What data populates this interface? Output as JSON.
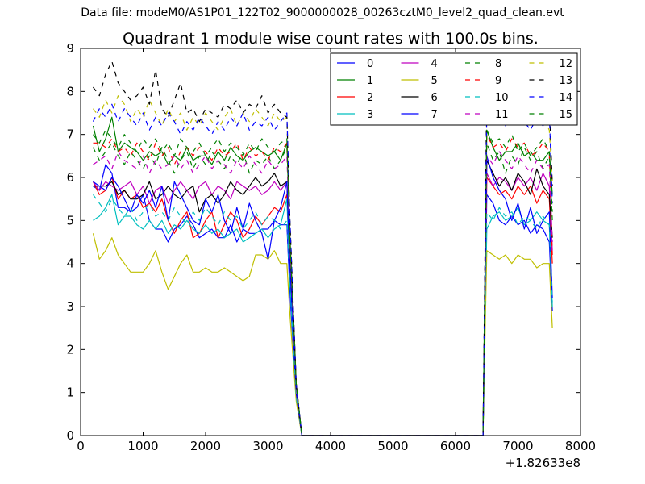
{
  "figure": {
    "suptitle": "Data file: modeM0/AS1P01_122T02_9000000028_00263cztM0_level2_quad_clean.evt"
  },
  "chart_data": {
    "type": "line",
    "title": "Quadrant 1 module wise count rates with 100.0s bins.",
    "xlabel": "",
    "ylabel": "",
    "x_offset_label": "+1.82633e8",
    "xlim": [
      0,
      8000
    ],
    "ylim": [
      0,
      9
    ],
    "xticks": [
      "0",
      "1000",
      "2000",
      "3000",
      "4000",
      "5000",
      "6000",
      "7000",
      "8000"
    ],
    "yticks": [
      "0",
      "1",
      "2",
      "3",
      "4",
      "5",
      "6",
      "7",
      "8",
      "9"
    ],
    "grid": false,
    "legend": {
      "placement": "top-right",
      "columns": 4
    },
    "x": [
      200,
      300,
      400,
      500,
      600,
      700,
      800,
      900,
      1000,
      1100,
      1200,
      1300,
      1400,
      1500,
      1600,
      1700,
      1800,
      1900,
      2000,
      2100,
      2200,
      2300,
      2400,
      2500,
      2600,
      2700,
      2800,
      2900,
      3000,
      3100,
      3200,
      3300,
      3350,
      3450,
      3540,
      6440,
      6500,
      6600,
      6700,
      6800,
      6900,
      7000,
      7100,
      7200,
      7300,
      7400,
      7500,
      7550
    ],
    "series": [
      {
        "name": "0",
        "color": "#0000ff",
        "dash": "solid",
        "values": [
          5.8,
          5.7,
          6.3,
          6.1,
          5.3,
          5.3,
          5.2,
          5.3,
          5.6,
          5.0,
          4.8,
          4.8,
          4.5,
          4.8,
          4.9,
          5.1,
          4.9,
          4.6,
          4.7,
          4.8,
          4.6,
          4.6,
          4.9,
          4.5,
          4.8,
          4.7,
          4.7,
          4.8,
          4.8,
          5.0,
          4.9,
          4.9,
          3.3,
          0.9,
          0.0,
          0.0,
          5.6,
          5.4,
          5.0,
          4.9,
          5.1,
          4.9,
          5.0,
          4.7,
          4.9,
          4.8,
          4.5,
          2.9
        ]
      },
      {
        "name": "1",
        "color": "#008000",
        "dash": "solid",
        "values": [
          7.2,
          6.6,
          6.9,
          7.4,
          6.6,
          6.8,
          6.7,
          6.6,
          6.4,
          6.6,
          6.5,
          6.6,
          6.3,
          6.5,
          6.4,
          6.7,
          6.4,
          6.5,
          6.5,
          6.3,
          6.6,
          6.4,
          6.7,
          6.5,
          6.4,
          6.6,
          6.7,
          6.6,
          6.5,
          6.6,
          6.4,
          6.8,
          4.5,
          1.2,
          0.0,
          0.0,
          7.1,
          6.7,
          6.4,
          6.6,
          6.6,
          6.8,
          6.5,
          6.6,
          6.4,
          6.4,
          6.6,
          5.6
        ]
      },
      {
        "name": "2",
        "color": "#ff0000",
        "dash": "solid",
        "values": [
          5.9,
          5.6,
          5.7,
          6.0,
          5.5,
          5.7,
          5.5,
          5.6,
          5.3,
          5.4,
          5.2,
          5.5,
          5.0,
          4.7,
          5.0,
          5.2,
          4.6,
          4.7,
          5.0,
          5.2,
          4.6,
          4.9,
          5.2,
          5.0,
          4.6,
          4.8,
          5.1,
          4.9,
          5.1,
          5.3,
          5.2,
          5.6,
          3.8,
          1.0,
          0.0,
          0.0,
          6.0,
          5.8,
          5.6,
          5.7,
          5.5,
          5.8,
          5.6,
          5.8,
          5.4,
          5.7,
          5.5,
          4.0
        ]
      },
      {
        "name": "3",
        "color": "#00bfbf",
        "dash": "solid",
        "values": [
          5.0,
          5.1,
          5.3,
          5.6,
          4.9,
          5.1,
          5.1,
          4.9,
          4.8,
          5.0,
          4.8,
          5.0,
          4.7,
          4.9,
          4.8,
          5.0,
          4.8,
          4.7,
          4.9,
          4.7,
          4.8,
          4.6,
          4.7,
          4.8,
          4.5,
          4.6,
          4.7,
          4.8,
          4.6,
          4.8,
          4.9,
          5.5,
          3.6,
          0.9,
          0.0,
          0.0,
          4.8,
          5.1,
          5.2,
          5.0,
          5.1,
          5.3,
          4.9,
          5.0,
          5.2,
          5.0,
          4.9,
          3.0
        ]
      },
      {
        "name": "4",
        "color": "#bf00bf",
        "dash": "solid",
        "values": [
          5.9,
          5.7,
          5.9,
          5.8,
          5.7,
          5.8,
          5.9,
          5.6,
          5.8,
          5.4,
          5.7,
          5.8,
          5.4,
          5.7,
          5.9,
          5.7,
          5.5,
          5.8,
          5.9,
          5.6,
          5.8,
          5.7,
          5.5,
          5.9,
          5.8,
          5.7,
          5.8,
          5.6,
          5.7,
          5.9,
          5.7,
          5.9,
          3.9,
          1.0,
          0.0,
          0.0,
          6.1,
          5.8,
          6.0,
          5.9,
          5.7,
          6.0,
          5.8,
          6.0,
          5.7,
          6.1,
          5.8,
          4.3
        ]
      },
      {
        "name": "5",
        "color": "#bfbf00",
        "dash": "solid",
        "values": [
          4.7,
          4.1,
          4.3,
          4.6,
          4.2,
          4.0,
          3.8,
          3.8,
          3.8,
          4.0,
          4.3,
          3.8,
          3.4,
          3.7,
          4.0,
          4.2,
          3.8,
          3.8,
          3.9,
          3.8,
          3.8,
          3.9,
          3.8,
          3.7,
          3.6,
          3.7,
          4.2,
          4.2,
          4.1,
          4.3,
          4.0,
          4.0,
          2.8,
          0.8,
          0.0,
          0.0,
          4.3,
          4.2,
          4.1,
          4.2,
          4.0,
          4.2,
          4.1,
          4.1,
          3.9,
          4.0,
          4.0,
          2.5
        ]
      },
      {
        "name": "6",
        "color": "#000000",
        "dash": "solid",
        "values": [
          5.8,
          5.8,
          5.8,
          5.9,
          5.6,
          5.7,
          5.5,
          5.5,
          5.6,
          5.9,
          5.5,
          5.6,
          5.8,
          5.6,
          5.5,
          5.7,
          5.8,
          5.2,
          5.5,
          5.6,
          5.4,
          5.6,
          5.9,
          5.7,
          5.6,
          5.8,
          6.0,
          5.8,
          5.9,
          6.1,
          5.8,
          5.9,
          4.0,
          1.0,
          0.0,
          0.0,
          6.4,
          6.1,
          5.8,
          6.0,
          5.7,
          6.1,
          5.9,
          5.6,
          6.2,
          5.8,
          5.6,
          4.6
        ]
      },
      {
        "name": "7",
        "color": "#0000ff",
        "dash": "solid",
        "values": [
          5.9,
          5.8,
          5.7,
          6.0,
          5.8,
          5.5,
          5.2,
          5.6,
          5.4,
          5.7,
          5.3,
          5.8,
          5.0,
          5.9,
          5.6,
          5.3,
          5.0,
          4.9,
          5.5,
          5.2,
          5.6,
          5.0,
          4.7,
          5.3,
          4.8,
          5.4,
          5.0,
          4.7,
          4.1,
          5.0,
          5.3,
          5.9,
          3.9,
          1.0,
          0.0,
          0.0,
          6.5,
          6.0,
          5.7,
          5.5,
          5.0,
          5.4,
          4.8,
          5.3,
          4.7,
          5.0,
          5.2,
          3.2
        ]
      },
      {
        "name": "8",
        "color": "#008000",
        "dash": "dashed",
        "values": [
          6.7,
          6.4,
          6.6,
          6.8,
          6.5,
          6.3,
          6.6,
          6.4,
          6.2,
          6.5,
          6.3,
          6.7,
          6.4,
          6.1,
          6.4,
          6.6,
          6.2,
          6.5,
          6.3,
          6.6,
          6.4,
          6.2,
          6.5,
          6.3,
          6.6,
          6.1,
          6.4,
          6.3,
          6.5,
          6.2,
          6.4,
          6.7,
          4.5,
          1.2,
          0.0,
          0.0,
          6.8,
          6.4,
          6.6,
          6.1,
          6.5,
          6.3,
          6.7,
          6.4,
          6.6,
          6.2,
          6.5,
          5.0
        ]
      },
      {
        "name": "9",
        "color": "#ff0000",
        "dash": "dashed",
        "values": [
          6.8,
          6.8,
          6.7,
          6.9,
          6.6,
          6.7,
          6.5,
          6.8,
          6.6,
          6.4,
          6.8,
          6.5,
          6.7,
          6.3,
          6.6,
          6.7,
          6.5,
          6.7,
          6.6,
          6.4,
          6.7,
          6.5,
          6.6,
          6.8,
          6.4,
          6.7,
          6.5,
          6.6,
          6.4,
          6.7,
          6.6,
          6.8,
          4.6,
          1.2,
          0.0,
          0.0,
          7.0,
          6.7,
          6.8,
          6.6,
          6.9,
          6.7,
          6.8,
          6.5,
          6.6,
          6.8,
          6.6,
          4.2
        ]
      },
      {
        "name": "10",
        "color": "#00bfbf",
        "dash": "dashed",
        "values": [
          5.6,
          5.4,
          5.2,
          5.5,
          5.3,
          5.1,
          5.3,
          5.0,
          5.2,
          5.4,
          5.1,
          5.2,
          5.0,
          5.3,
          5.1,
          4.9,
          5.2,
          5.0,
          5.3,
          5.1,
          4.9,
          5.2,
          5.0,
          5.1,
          4.8,
          5.0,
          5.2,
          4.9,
          5.1,
          5.0,
          4.8,
          5.0,
          3.5,
          0.9,
          0.0,
          0.0,
          5.2,
          5.0,
          5.3,
          5.1,
          5.2,
          4.9,
          5.1,
          5.0,
          4.8,
          5.1,
          4.9,
          3.1
        ]
      },
      {
        "name": "11",
        "color": "#bf00bf",
        "dash": "dashed",
        "values": [
          6.3,
          6.4,
          6.5,
          6.2,
          6.6,
          6.4,
          6.3,
          6.2,
          6.5,
          6.1,
          6.4,
          6.2,
          6.3,
          6.5,
          6.2,
          6.4,
          6.1,
          6.3,
          6.5,
          6.2,
          6.4,
          6.3,
          6.1,
          6.4,
          6.2,
          6.5,
          6.3,
          6.1,
          6.4,
          6.2,
          6.3,
          6.5,
          4.4,
          1.1,
          0.0,
          0.0,
          6.5,
          6.3,
          6.6,
          6.4,
          6.2,
          6.5,
          6.3,
          6.1,
          6.4,
          6.2,
          6.3,
          4.5
        ]
      },
      {
        "name": "12",
        "color": "#bfbf00",
        "dash": "dashed",
        "values": [
          7.6,
          7.4,
          7.8,
          7.5,
          7.9,
          7.7,
          7.3,
          7.6,
          7.4,
          7.8,
          7.5,
          7.2,
          7.6,
          7.3,
          7.5,
          7.1,
          7.4,
          7.2,
          7.5,
          7.3,
          7.1,
          7.4,
          7.6,
          7.2,
          7.5,
          7.3,
          7.6,
          7.4,
          7.2,
          7.5,
          7.3,
          7.4,
          5.0,
          1.2,
          0.0,
          0.0,
          7.8,
          7.5,
          7.7,
          8.1,
          7.4,
          7.6,
          7.3,
          7.5,
          7.2,
          7.4,
          7.1,
          5.9
        ]
      },
      {
        "name": "13",
        "color": "#000000",
        "dash": "dashed",
        "values": [
          8.1,
          7.9,
          8.4,
          8.7,
          8.2,
          8.0,
          7.8,
          7.9,
          8.1,
          7.7,
          8.5,
          7.6,
          7.4,
          7.8,
          8.2,
          7.5,
          7.6,
          7.3,
          7.6,
          7.5,
          7.4,
          7.7,
          7.6,
          7.8,
          7.5,
          7.7,
          7.6,
          7.9,
          7.5,
          7.7,
          7.5,
          7.4,
          5.0,
          1.2,
          0.0,
          0.0,
          8.2,
          7.9,
          7.8,
          8.0,
          7.7,
          7.9,
          8.1,
          7.8,
          7.6,
          7.9,
          7.8,
          5.8
        ]
      },
      {
        "name": "14",
        "color": "#0000ff",
        "dash": "dashed",
        "values": [
          7.3,
          7.6,
          7.4,
          7.7,
          7.3,
          7.6,
          7.4,
          7.2,
          7.5,
          7.1,
          7.4,
          7.2,
          7.5,
          7.3,
          7.0,
          7.3,
          7.1,
          7.4,
          7.2,
          7.0,
          7.3,
          7.1,
          7.4,
          7.2,
          7.5,
          7.1,
          7.3,
          7.2,
          7.4,
          7.1,
          7.3,
          7.5,
          5.0,
          1.2,
          0.0,
          0.0,
          7.6,
          7.3,
          7.5,
          7.2,
          7.4,
          7.6,
          7.3,
          7.1,
          7.4,
          7.2,
          7.5,
          5.4
        ]
      },
      {
        "name": "15",
        "color": "#008000",
        "dash": "dashed",
        "values": [
          7.0,
          6.8,
          7.1,
          6.9,
          6.7,
          7.0,
          6.8,
          6.6,
          6.9,
          6.7,
          6.9,
          6.6,
          6.8,
          6.5,
          6.9,
          6.7,
          6.6,
          6.8,
          6.5,
          6.7,
          6.9,
          6.6,
          6.8,
          6.7,
          6.5,
          6.8,
          6.6,
          6.9,
          6.7,
          6.6,
          6.8,
          6.9,
          4.6,
          1.2,
          0.0,
          0.0,
          7.1,
          6.8,
          6.9,
          6.7,
          7.0,
          6.6,
          6.8,
          6.5,
          6.7,
          6.9,
          6.6,
          5.2
        ]
      }
    ]
  }
}
